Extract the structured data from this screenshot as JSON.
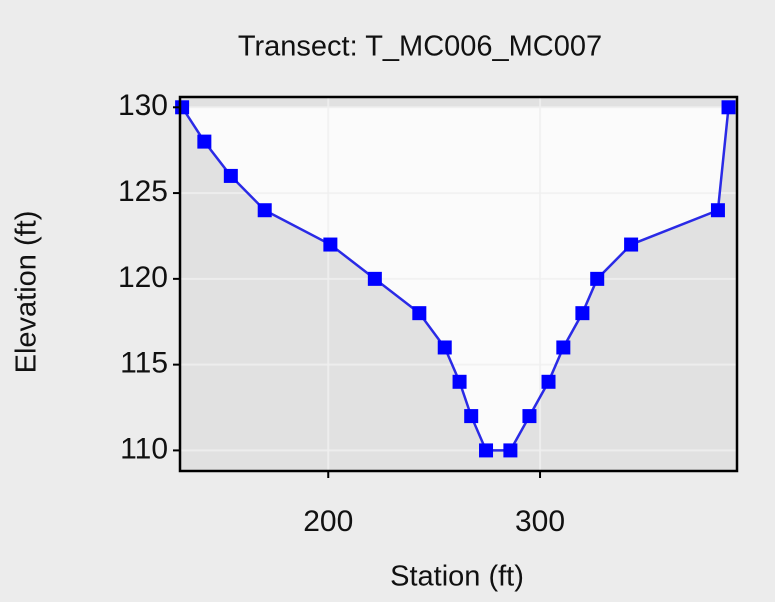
{
  "chart_data": {
    "type": "line",
    "title": "Transect: T_MC006_MC007",
    "x_label": "Station (ft)",
    "y_label": "Elevation (ft)",
    "x": [
      131,
      141.5,
      154,
      170,
      201,
      222,
      243,
      255,
      262,
      267.5,
      274.5,
      286,
      295,
      304,
      311,
      320,
      327,
      343,
      384,
      389
    ],
    "series": [
      {
        "name": "Transect",
        "color": "#0000ff",
        "values": [
          130,
          128,
          126,
          124,
          122,
          120,
          118,
          116,
          114,
          112,
          110,
          110,
          112,
          114,
          116,
          118,
          120,
          122,
          124,
          130
        ]
      }
    ],
    "xlim": [
      130,
      393
    ],
    "ylim": [
      108.8,
      130.6
    ],
    "xticks": [
      200,
      300
    ],
    "yticks": [
      110,
      115,
      120,
      125,
      130
    ],
    "grid": true
  }
}
